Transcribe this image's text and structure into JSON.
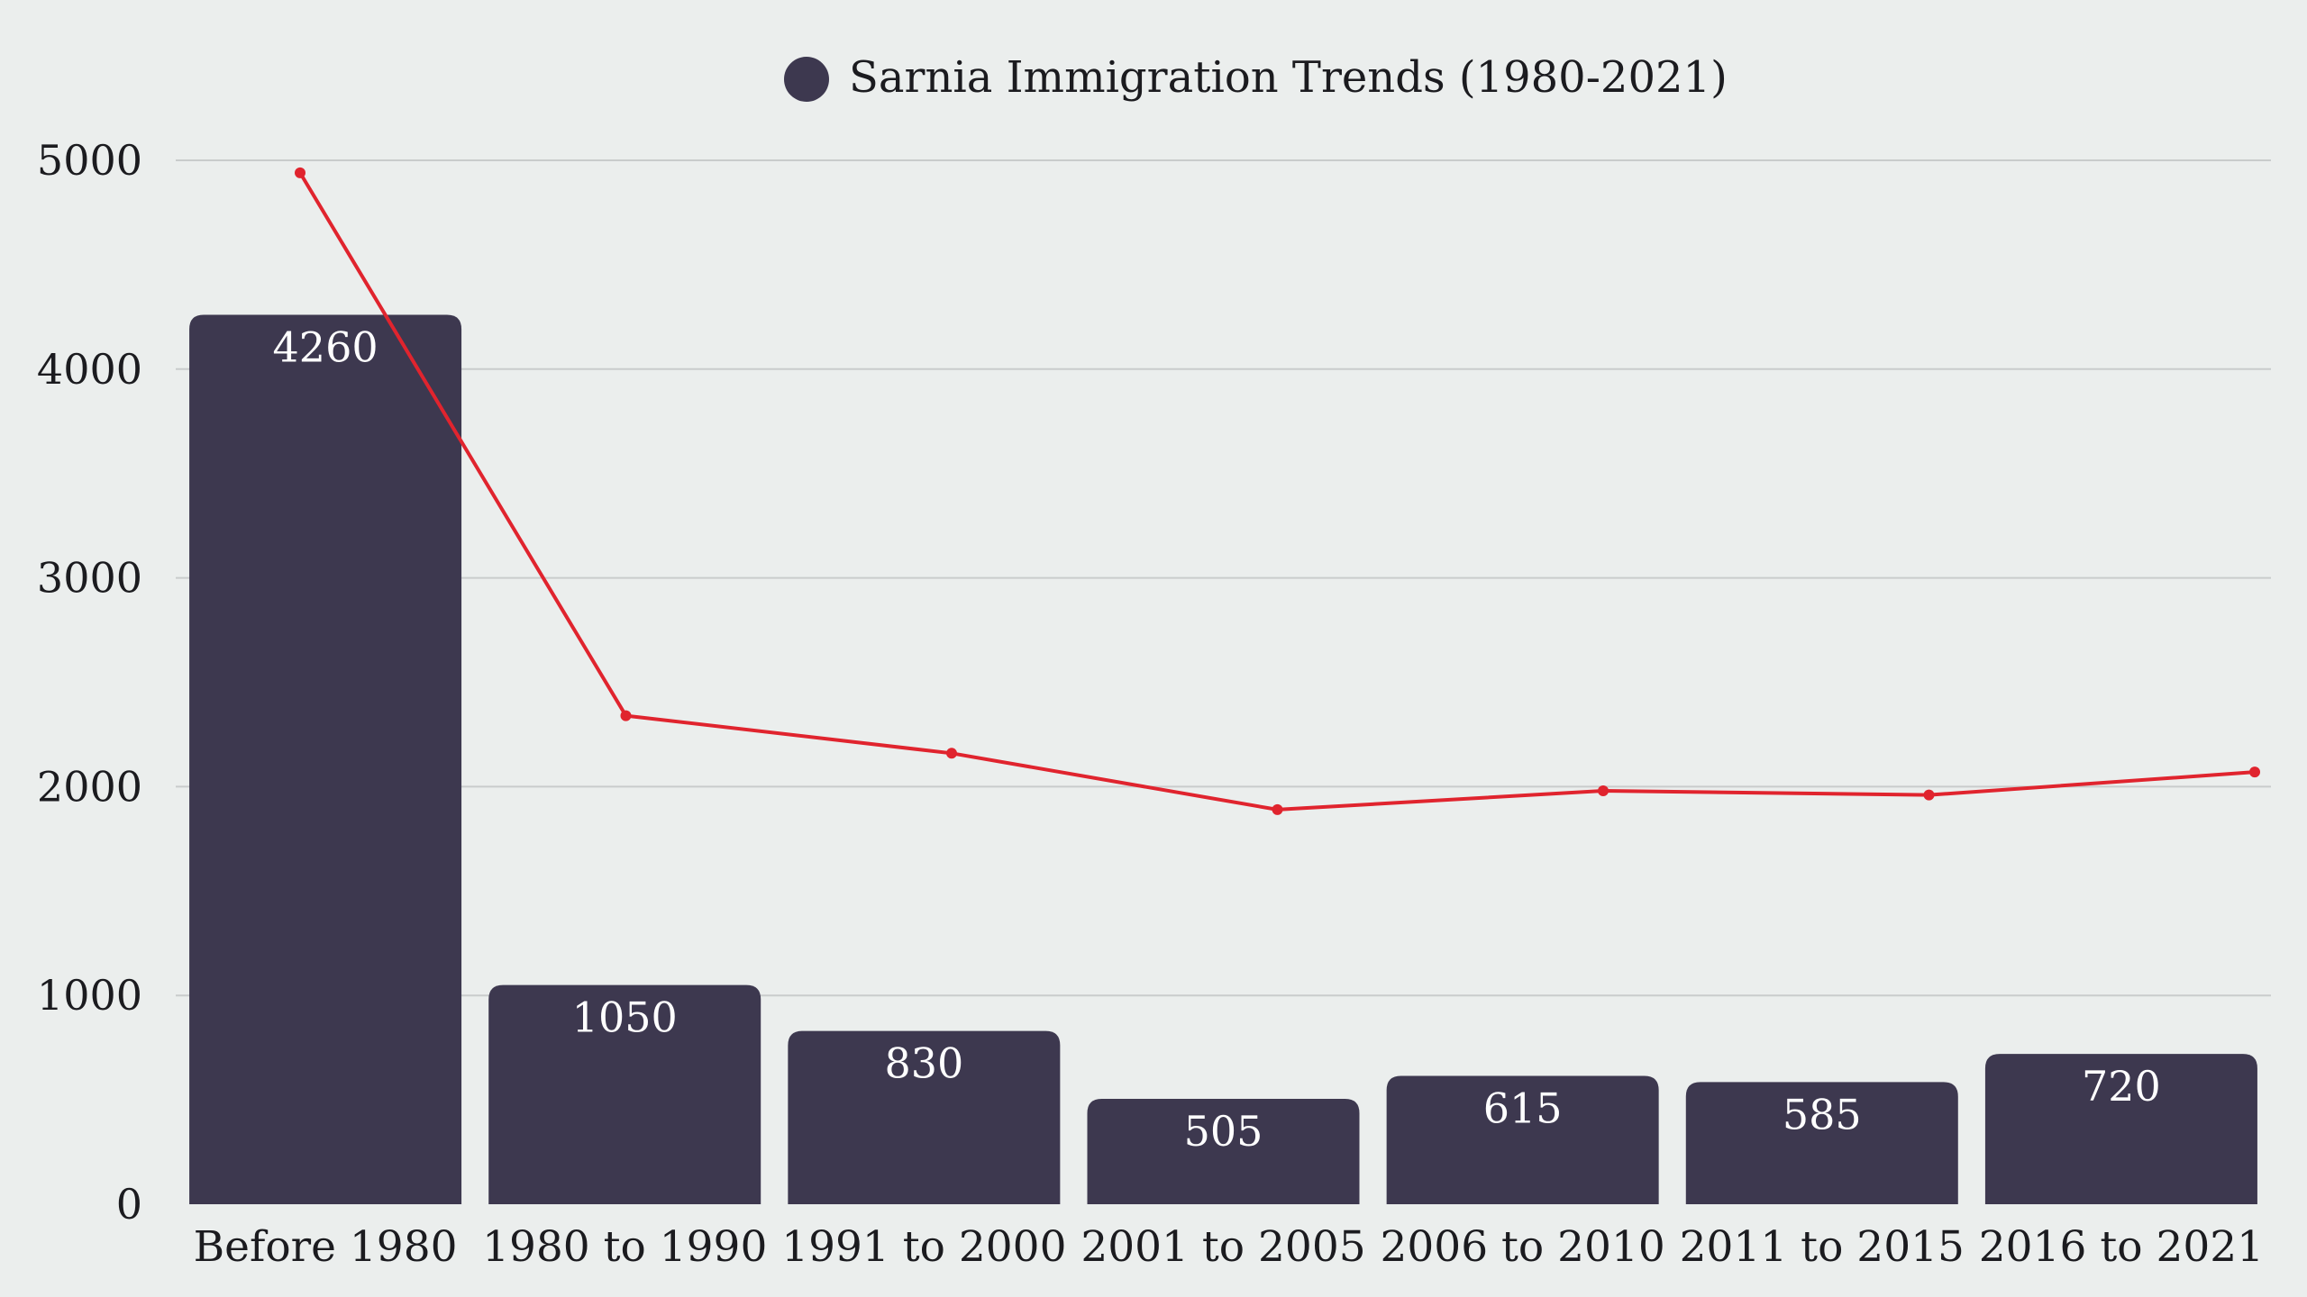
{
  "chart_data": {
    "type": "bar",
    "title": "",
    "legend": {
      "position": "top-center",
      "label": "Sarnia Immigration Trends (1980-2021)"
    },
    "categories": [
      "Before 1980",
      "1980 to 1990",
      "1991 to 2000",
      "2001 to 2005",
      "2006 to 2010",
      "2011 to 2015",
      "2016 to 2021"
    ],
    "series": [
      {
        "name": "Sarnia Immigration Trends (1980-2021)",
        "type": "bar",
        "color": "#3d384f",
        "values": [
          4260,
          1050,
          830,
          505,
          615,
          585,
          720
        ]
      },
      {
        "type": "line",
        "color": "#e0242e",
        "values": [
          4940,
          2340,
          2160,
          1890,
          1980,
          1960,
          2070
        ]
      }
    ],
    "ylim": [
      0,
      5000
    ],
    "yticks": [
      0,
      1000,
      2000,
      3000,
      4000,
      5000
    ],
    "grid": true,
    "xlabel": "",
    "ylabel": ""
  }
}
